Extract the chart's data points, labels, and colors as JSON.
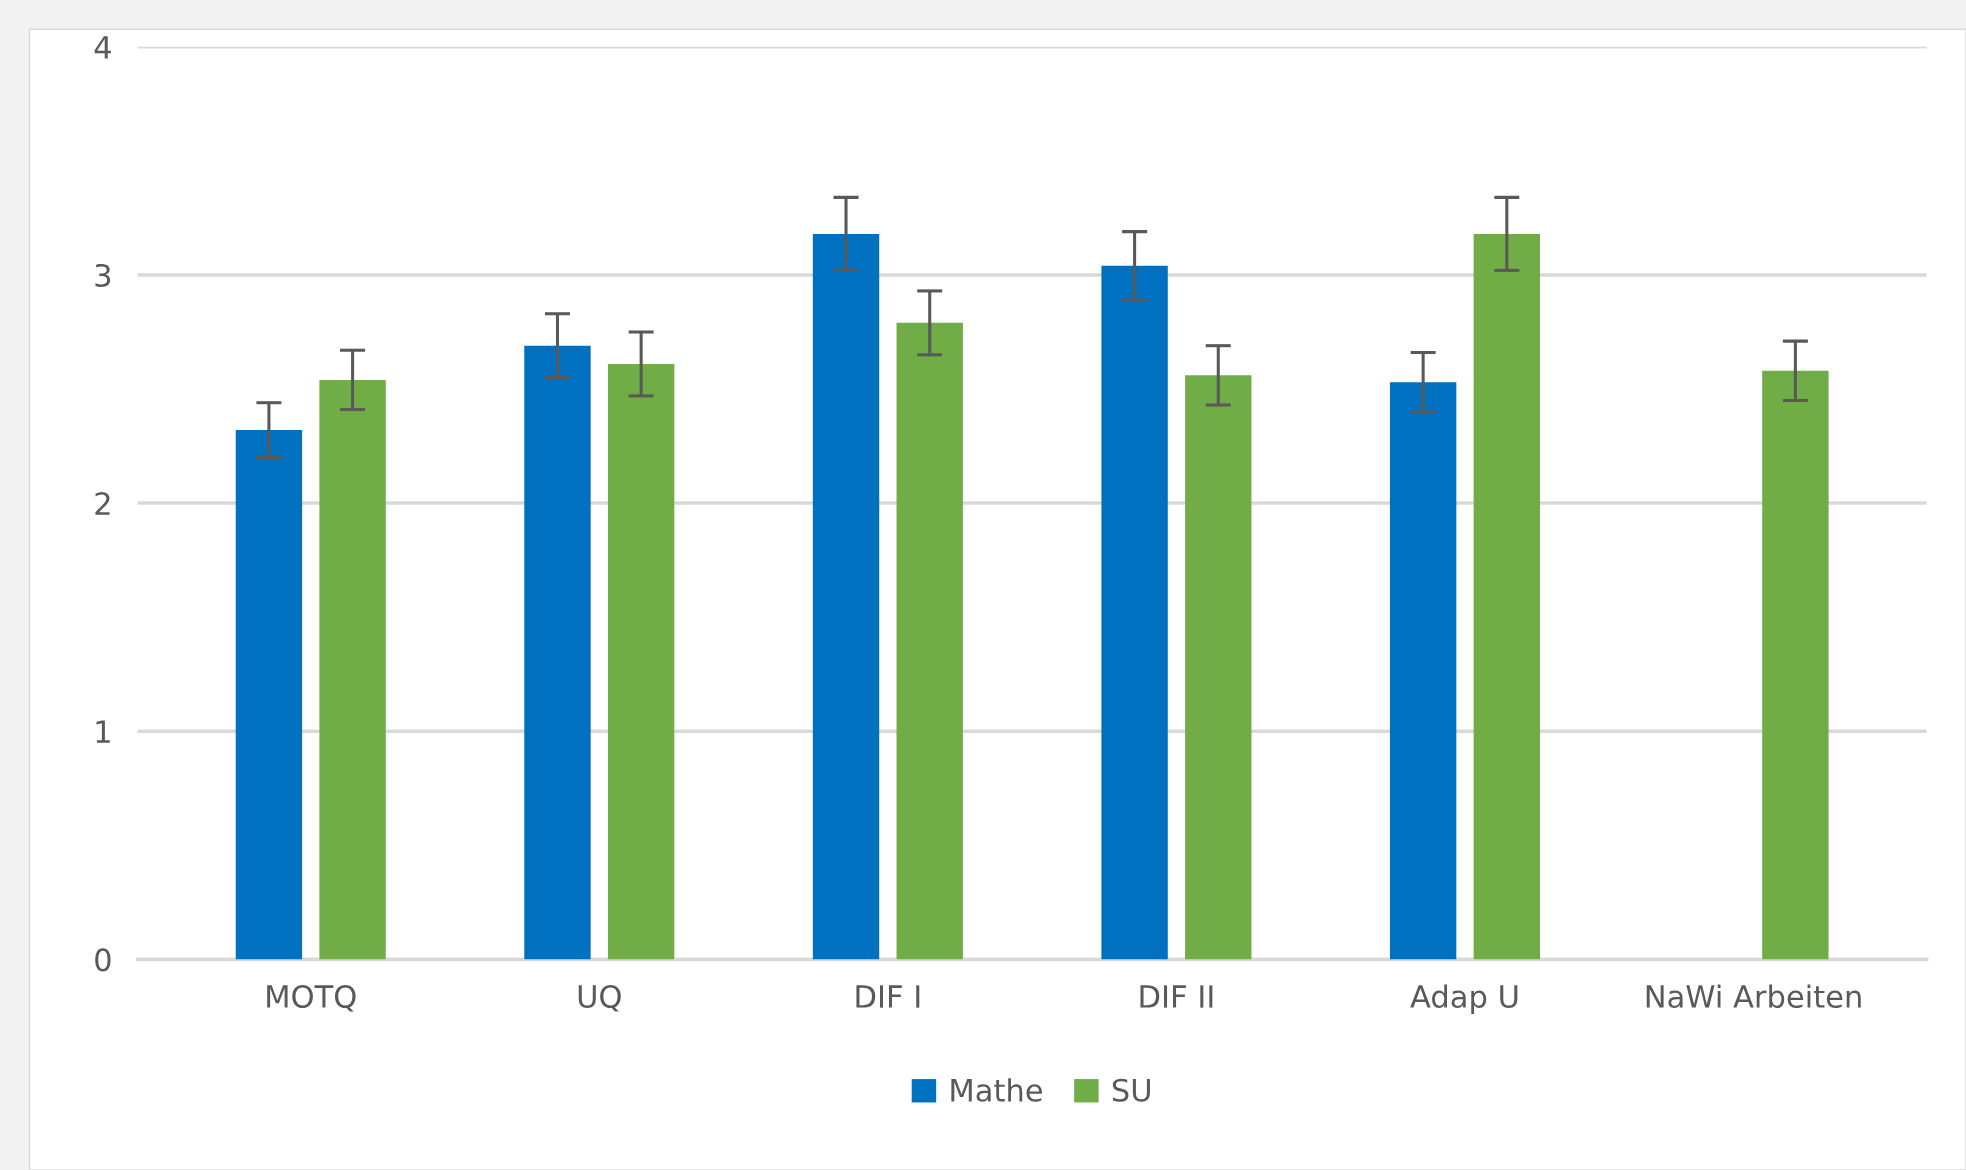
{
  "chart_data": {
    "type": "bar",
    "categories": [
      "MOTQ",
      "UQ",
      "DIF I",
      "DIF II",
      "Adap U",
      "NaWi Arbeiten"
    ],
    "series": [
      {
        "name": "Mathe",
        "color": "#0070c0",
        "values": [
          2.32,
          2.69,
          3.18,
          3.04,
          2.53,
          null
        ],
        "errors": [
          0.12,
          0.14,
          0.16,
          0.15,
          0.13,
          null
        ]
      },
      {
        "name": "SU",
        "color": "#70ad47",
        "values": [
          2.54,
          2.61,
          2.79,
          2.56,
          3.18,
          2.58
        ],
        "errors": [
          0.13,
          0.14,
          0.14,
          0.13,
          0.16,
          0.13
        ]
      }
    ],
    "ylim": [
      0,
      4
    ],
    "yticks": [
      0,
      1,
      2,
      3,
      4
    ],
    "grid": "y",
    "legend": "bottom"
  }
}
